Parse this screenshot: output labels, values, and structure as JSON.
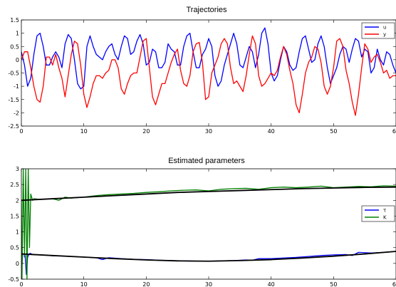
{
  "colors": {
    "u": "#0000ff",
    "y": "#ff0000",
    "tau": "#0000ff",
    "K": "#008000",
    "estimate": "#000000"
  },
  "chart_data": [
    {
      "type": "line",
      "title": "Trajectories",
      "xlim": [
        0,
        60
      ],
      "ylim": [
        -2.5,
        1.5
      ],
      "xticks": [
        0,
        10,
        20,
        30,
        40,
        50,
        60
      ],
      "yticks": [
        -2.5,
        -2,
        -1.5,
        -1,
        -0.5,
        0,
        0.5,
        1,
        1.5
      ],
      "ytick_labels": [
        "-2.5",
        "-2",
        "-1.5",
        "-1",
        "-0.5",
        "0",
        "0.5",
        "1",
        "1.5"
      ],
      "legend": {
        "placement": "top-right",
        "entries": [
          "u",
          "y"
        ]
      },
      "series": [
        {
          "name": "u",
          "color": "blue",
          "x": [
            0,
            0.5,
            1,
            1.5,
            2,
            2.5,
            3,
            3.5,
            4,
            4.5,
            5,
            5.5,
            6,
            6.5,
            7,
            7.5,
            8,
            8.5,
            9,
            9.5,
            10,
            10.5,
            11,
            11.5,
            12,
            12.5,
            13,
            13.5,
            14,
            14.5,
            15,
            15.5,
            16,
            16.5,
            17,
            17.5,
            18,
            18.5,
            19,
            19.5,
            20,
            20.5,
            21,
            21.5,
            22,
            22.5,
            23,
            23.5,
            24,
            24.5,
            25,
            25.5,
            26,
            26.5,
            27,
            27.5,
            28,
            28.5,
            29,
            29.5,
            30,
            30.5,
            31,
            31.5,
            32,
            32.5,
            33,
            33.5,
            34,
            34.5,
            35,
            35.5,
            36,
            36.5,
            37,
            37.5,
            38,
            38.5,
            39,
            39.5,
            40,
            40.5,
            41,
            41.5,
            42,
            42.5,
            43,
            43.5,
            44,
            44.5,
            45,
            45.5,
            46,
            46.5,
            47,
            47.5,
            48,
            48.5,
            49,
            49.5,
            50,
            50.5,
            51,
            51.5,
            52,
            52.5,
            53,
            53.5,
            54,
            54.5,
            55,
            55.5,
            56,
            56.5,
            57,
            57.5,
            58,
            58.5,
            59,
            59.5,
            60
          ],
          "values": [
            0.3,
            -0.2,
            -1.0,
            -0.7,
            0.2,
            0.9,
            1.0,
            0.5,
            -0.2,
            -0.2,
            0.1,
            0.3,
            0.1,
            -0.3,
            0.6,
            0.95,
            0.8,
            0.0,
            -0.9,
            -1.1,
            -1.0,
            0.5,
            0.9,
            0.5,
            0.2,
            0.1,
            0.0,
            0.3,
            0.5,
            0.6,
            0.2,
            0.0,
            0.5,
            0.9,
            0.8,
            0.2,
            0.3,
            0.7,
            0.95,
            0.6,
            -0.2,
            -0.1,
            0.4,
            0.3,
            -0.3,
            -0.3,
            -0.1,
            0.6,
            0.4,
            0.3,
            -0.2,
            -0.2,
            0.5,
            0.9,
            1.0,
            0.3,
            -0.3,
            -0.3,
            0.2,
            0.4,
            0.8,
            0.5,
            -0.6,
            -1.0,
            -0.8,
            -0.2,
            0.2,
            0.6,
            1.0,
            0.6,
            -0.2,
            -0.3,
            0.1,
            0.5,
            0.3,
            -0.3,
            0.2,
            1.0,
            1.2,
            0.6,
            -0.5,
            -0.8,
            -0.6,
            0.0,
            0.5,
            0.3,
            -0.2,
            -0.4,
            -0.3,
            0.3,
            0.8,
            0.9,
            0.4,
            -0.1,
            0.0,
            0.6,
            0.9,
            0.5,
            -0.3,
            -0.9,
            -0.6,
            -0.3,
            0.2,
            0.5,
            0.4,
            -0.1,
            0.4,
            0.8,
            0.7,
            0.1,
            0.4,
            0.3,
            -0.5,
            -0.3,
            0.4,
            0.0,
            -0.2,
            0.3,
            0.2,
            -0.2,
            -0.5
          ]
        },
        {
          "name": "y",
          "color": "red",
          "x": [
            0,
            0.5,
            1,
            1.5,
            2,
            2.5,
            3,
            3.5,
            4,
            4.5,
            5,
            5.5,
            6,
            6.5,
            7,
            7.5,
            8,
            8.5,
            9,
            9.5,
            10,
            10.5,
            11,
            11.5,
            12,
            12.5,
            13,
            13.5,
            14,
            14.5,
            15,
            15.5,
            16,
            16.5,
            17,
            17.5,
            18,
            18.5,
            19,
            19.5,
            20,
            20.5,
            21,
            21.5,
            22,
            22.5,
            23,
            23.5,
            24,
            24.5,
            25,
            25.5,
            26,
            26.5,
            27,
            27.5,
            28,
            28.5,
            29,
            29.5,
            30,
            30.5,
            31,
            31.5,
            32,
            32.5,
            33,
            33.5,
            34,
            34.5,
            35,
            35.5,
            36,
            36.5,
            37,
            37.5,
            38,
            38.5,
            39,
            39.5,
            40,
            40.5,
            41,
            41.5,
            42,
            42.5,
            43,
            43.5,
            44,
            44.5,
            45,
            45.5,
            46,
            46.5,
            47,
            47.5,
            48,
            48.5,
            49,
            49.5,
            50,
            50.5,
            51,
            51.5,
            52,
            52.5,
            53,
            53.5,
            54,
            54.5,
            55,
            55.5,
            56,
            56.5,
            57,
            57.5,
            58,
            58.5,
            59,
            59.5,
            60
          ],
          "values": [
            0.0,
            0.3,
            0.3,
            -0.3,
            -1.0,
            -1.5,
            -1.6,
            -1.0,
            0.1,
            0.1,
            -0.2,
            0.2,
            -0.3,
            -0.7,
            -1.4,
            -0.6,
            0.2,
            0.7,
            0.6,
            -0.2,
            -1.3,
            -1.8,
            -1.4,
            -0.9,
            -0.6,
            -0.6,
            -0.7,
            -0.5,
            -0.4,
            0.0,
            0.0,
            -0.3,
            -1.1,
            -1.3,
            -0.9,
            -0.6,
            -0.5,
            -0.5,
            0.1,
            0.7,
            0.8,
            -0.3,
            -1.4,
            -1.7,
            -1.3,
            -0.9,
            -0.9,
            -0.5,
            -0.1,
            0.2,
            0.4,
            -0.4,
            -0.9,
            -1.0,
            -0.6,
            0.3,
            0.6,
            0.65,
            -0.1,
            -1.5,
            -1.4,
            -0.5,
            -0.2,
            0.1,
            0.6,
            0.8,
            0.6,
            -0.3,
            -0.9,
            -0.8,
            -1.0,
            -1.2,
            -0.6,
            0.2,
            0.9,
            0.6,
            -0.6,
            -1.0,
            -0.9,
            -0.7,
            -0.5,
            -0.6,
            -0.4,
            0.1,
            0.5,
            0.2,
            -0.4,
            -0.9,
            -1.7,
            -2.0,
            -1.3,
            -0.5,
            -0.1,
            0.1,
            0.5,
            0.4,
            -0.1,
            -1.0,
            -1.3,
            -1.0,
            -0.3,
            0.7,
            0.8,
            0.5,
            -0.4,
            -0.9,
            -1.6,
            -2.1,
            -1.3,
            -0.3,
            0.6,
            0.4,
            -0.1,
            0.1,
            0.2,
            -0.1,
            -0.5,
            -0.4,
            -0.7,
            -0.6,
            -0.6
          ]
        }
      ]
    },
    {
      "type": "line",
      "title": "Estimated parameters",
      "xlim": [
        0,
        60
      ],
      "ylim": [
        -0.5,
        3
      ],
      "xticks": [
        0,
        10,
        20,
        30,
        40,
        50,
        60
      ],
      "yticks": [
        -0.5,
        0,
        0.5,
        1,
        1.5,
        2,
        2.5,
        3
      ],
      "ytick_labels": [
        "-0.5",
        "0",
        "0.5",
        "1",
        "1.5",
        "2",
        "2.5",
        "3"
      ],
      "legend": {
        "placement": "right",
        "entries": [
          "τ",
          "K"
        ]
      },
      "series": [
        {
          "name": "τ",
          "color": "blue",
          "x": [
            0,
            0.2,
            0.4,
            0.6,
            0.8,
            1,
            1.2,
            1.4,
            1.6,
            2,
            3,
            4,
            5,
            6,
            8,
            10,
            12,
            13,
            14,
            16,
            18,
            20,
            22,
            24,
            26,
            28,
            30,
            32,
            34,
            36,
            37,
            38,
            40,
            42,
            44,
            46,
            48,
            50,
            52,
            53,
            54,
            56,
            58,
            60
          ],
          "values": [
            -0.4,
            0.28,
            0.3,
            0.25,
            -0.35,
            0.2,
            0.28,
            0.32,
            0.3,
            0.27,
            0.27,
            0.26,
            0.24,
            0.24,
            0.22,
            0.2,
            0.18,
            0.12,
            0.18,
            0.15,
            0.13,
            0.12,
            0.1,
            0.09,
            0.08,
            0.07,
            0.07,
            0.08,
            0.09,
            0.11,
            0.1,
            0.15,
            0.15,
            0.17,
            0.19,
            0.22,
            0.25,
            0.27,
            0.28,
            0.25,
            0.35,
            0.33,
            0.35,
            0.38
          ]
        },
        {
          "name": "K",
          "color": "green",
          "x": [
            0,
            0.1,
            0.3,
            0.5,
            0.7,
            0.9,
            1.1,
            1.3,
            1.5,
            1.8,
            2,
            3,
            4,
            5,
            6,
            7,
            8,
            10,
            12,
            14,
            16,
            18,
            20,
            22,
            24,
            26,
            28,
            30,
            32,
            34,
            36,
            38,
            40,
            42,
            44,
            46,
            48,
            50,
            52,
            54,
            56,
            58,
            60
          ],
          "values": [
            2.0,
            -0.5,
            3.0,
            0.2,
            3.0,
            -0.5,
            3.0,
            0.5,
            2.2,
            2.0,
            2.05,
            2.03,
            2.04,
            2.05,
            2.0,
            2.1,
            2.07,
            2.1,
            2.15,
            2.18,
            2.2,
            2.22,
            2.25,
            2.27,
            2.3,
            2.32,
            2.33,
            2.3,
            2.35,
            2.37,
            2.38,
            2.35,
            2.4,
            2.42,
            2.4,
            2.42,
            2.45,
            2.4,
            2.42,
            2.44,
            2.43,
            2.46,
            2.45
          ]
        },
        {
          "color": "black",
          "x": [
            0,
            5,
            10,
            15,
            20,
            25,
            30,
            35,
            40,
            45,
            50,
            55,
            60
          ],
          "values": [
            2.0,
            2.05,
            2.1,
            2.15,
            2.2,
            2.25,
            2.28,
            2.31,
            2.34,
            2.37,
            2.39,
            2.41,
            2.42
          ]
        },
        {
          "color": "black",
          "x": [
            0,
            5,
            10,
            15,
            20,
            25,
            30,
            35,
            40,
            45,
            50,
            55,
            60
          ],
          "values": [
            0.3,
            0.25,
            0.2,
            0.15,
            0.11,
            0.08,
            0.07,
            0.09,
            0.12,
            0.17,
            0.23,
            0.3,
            0.38
          ]
        }
      ]
    }
  ]
}
